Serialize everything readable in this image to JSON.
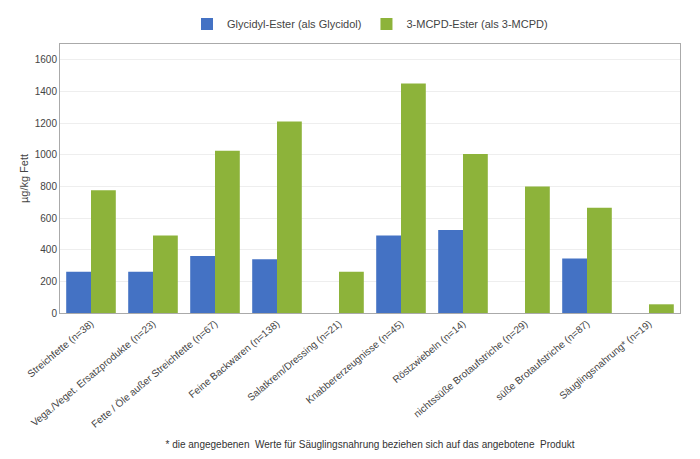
{
  "chart_data": {
    "type": "bar",
    "categories": [
      "Streichfette (n=38)",
      "Vega./Veget. Ersatzprodukte (n=23)",
      "Fette / Öle außer Streichfette (n=67)",
      "Feine Backwaren (n=138)",
      "Salatkrem/Dressing (n=21)",
      "Knabbererzeugnisse (n=45)",
      "Röstzwiebeln (n=14)",
      "nichtssüße Brotaufstriche (n=29)",
      "süße Brotaufstriche (n=87)",
      "Säuglingsnahrung* (n=19)"
    ],
    "series": [
      {
        "name": "Glycidyl-Ester (als Glycidol)",
        "color": "#4472C4",
        "values": [
          260,
          260,
          360,
          340,
          0,
          490,
          525,
          0,
          345,
          0
        ]
      },
      {
        "name": "3-MCPD-Ester (als 3-MCPD)",
        "color": "#8DB33A",
        "values": [
          775,
          490,
          1025,
          1210,
          260,
          1450,
          1005,
          800,
          665,
          55
        ]
      }
    ],
    "ylabel": "µg/kg Fett",
    "ylim": [
      0,
      1700
    ],
    "yticks": [
      0,
      200,
      400,
      600,
      800,
      1000,
      1200,
      1400,
      1600
    ],
    "grid": true,
    "legend": "top",
    "annotations": [
      "* die angegebenen  Werte für Säuglingsnahrung beziehen sich auf das angebotene  Produkt"
    ]
  }
}
